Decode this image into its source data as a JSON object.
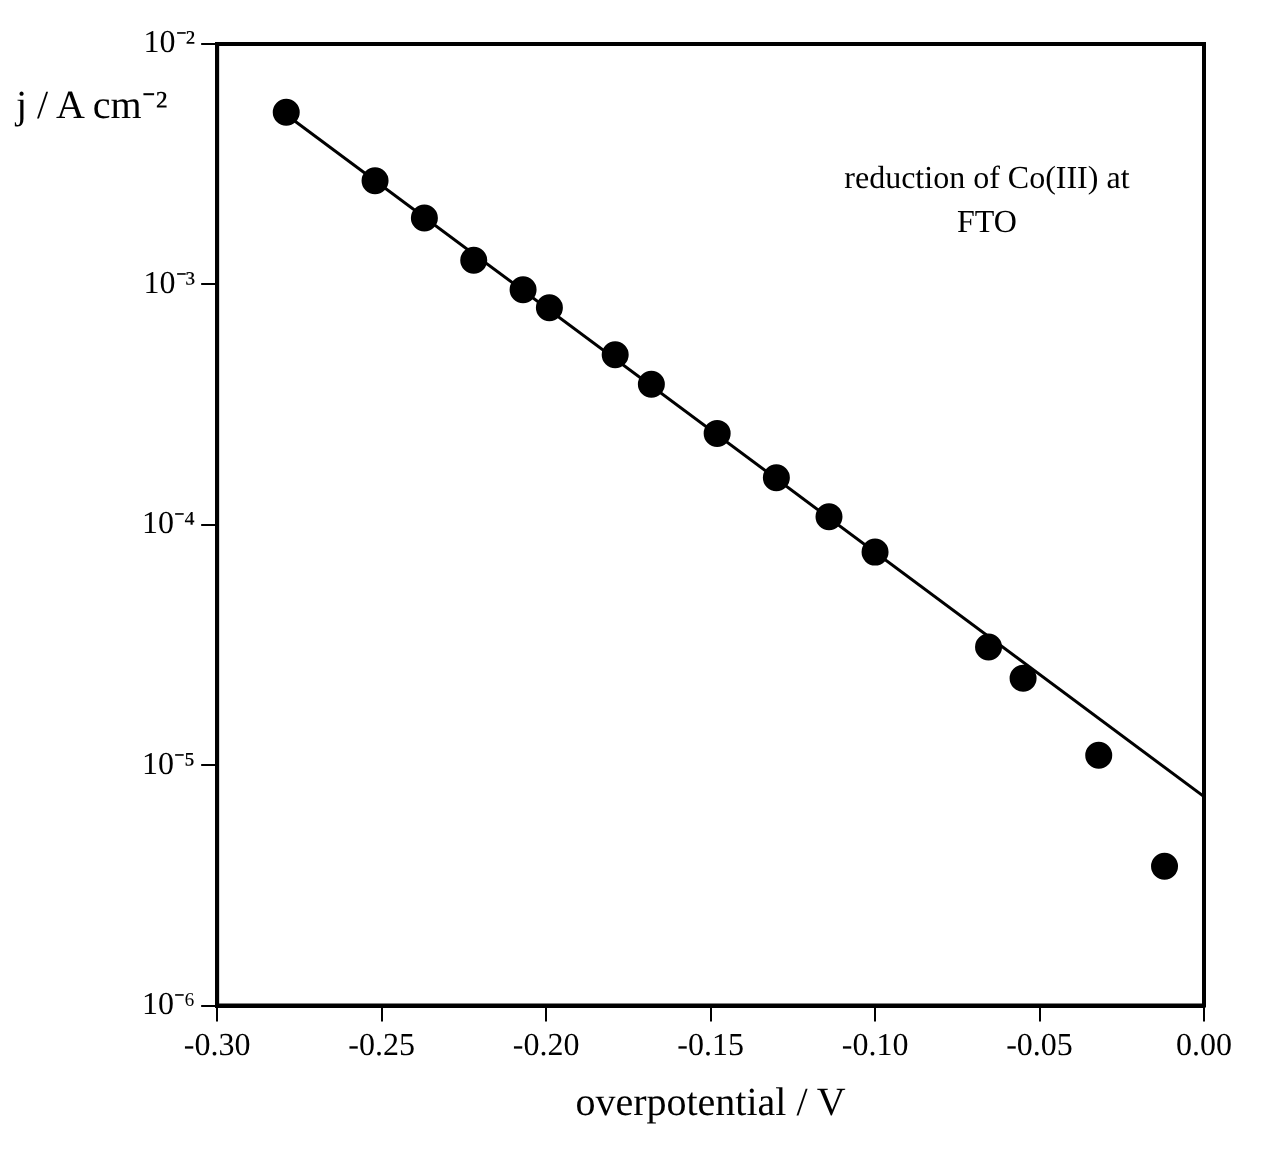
{
  "chart_data": {
    "type": "scatter",
    "xlabel": "overpotential / V",
    "ylabel": "j / A cm⁻²",
    "annotations": [
      "reduction of Co(III) at FTO"
    ],
    "log": "y",
    "grid": false,
    "legend": false,
    "marker": "circle",
    "xlim": [
      -0.3,
      0.0
    ],
    "xticks": [
      {
        "value": -0.3,
        "label": "-0.30"
      },
      {
        "value": -0.25,
        "label": "-0.25"
      },
      {
        "value": -0.2,
        "label": "-0.20"
      },
      {
        "value": -0.15,
        "label": "-0.15"
      },
      {
        "value": -0.1,
        "label": "-0.10"
      },
      {
        "value": -0.05,
        "label": "-0.05"
      },
      {
        "value": 0.0,
        "label": "0.00"
      }
    ],
    "ylim": [
      1e-06,
      0.01
    ],
    "yticks": [
      {
        "value": 1e-06,
        "label": "10⁻⁶"
      },
      {
        "value": 1e-05,
        "label": "10⁻⁵"
      },
      {
        "value": 0.0001,
        "label": "10⁻⁴"
      },
      {
        "value": 0.001,
        "label": "10⁻³"
      },
      {
        "value": 0.01,
        "label": "10⁻²"
      }
    ],
    "series": [
      {
        "type": "scatter",
        "color": "#000000",
        "x": [
          -0.279,
          -0.252,
          -0.237,
          -0.222,
          -0.207,
          -0.199,
          -0.179,
          -0.168,
          -0.148,
          -0.13,
          -0.114,
          -0.1,
          -0.0655,
          -0.055,
          -0.032,
          -0.012
        ],
        "values": [
          0.0052,
          0.0027,
          0.00189,
          0.00126,
          0.00095,
          0.0008,
          0.00051,
          0.000384,
          0.00024,
          0.000157,
          0.000108,
          7.7e-05,
          3.1e-05,
          2.3e-05,
          1.1e-05,
          3.8e-06
        ]
      },
      {
        "type": "line",
        "color": "#000000",
        "marker": "none",
        "line_style": "solid",
        "x": [
          -0.28,
          0.0
        ],
        "values": [
          0.0052,
          7.4e-06
        ]
      }
    ]
  }
}
